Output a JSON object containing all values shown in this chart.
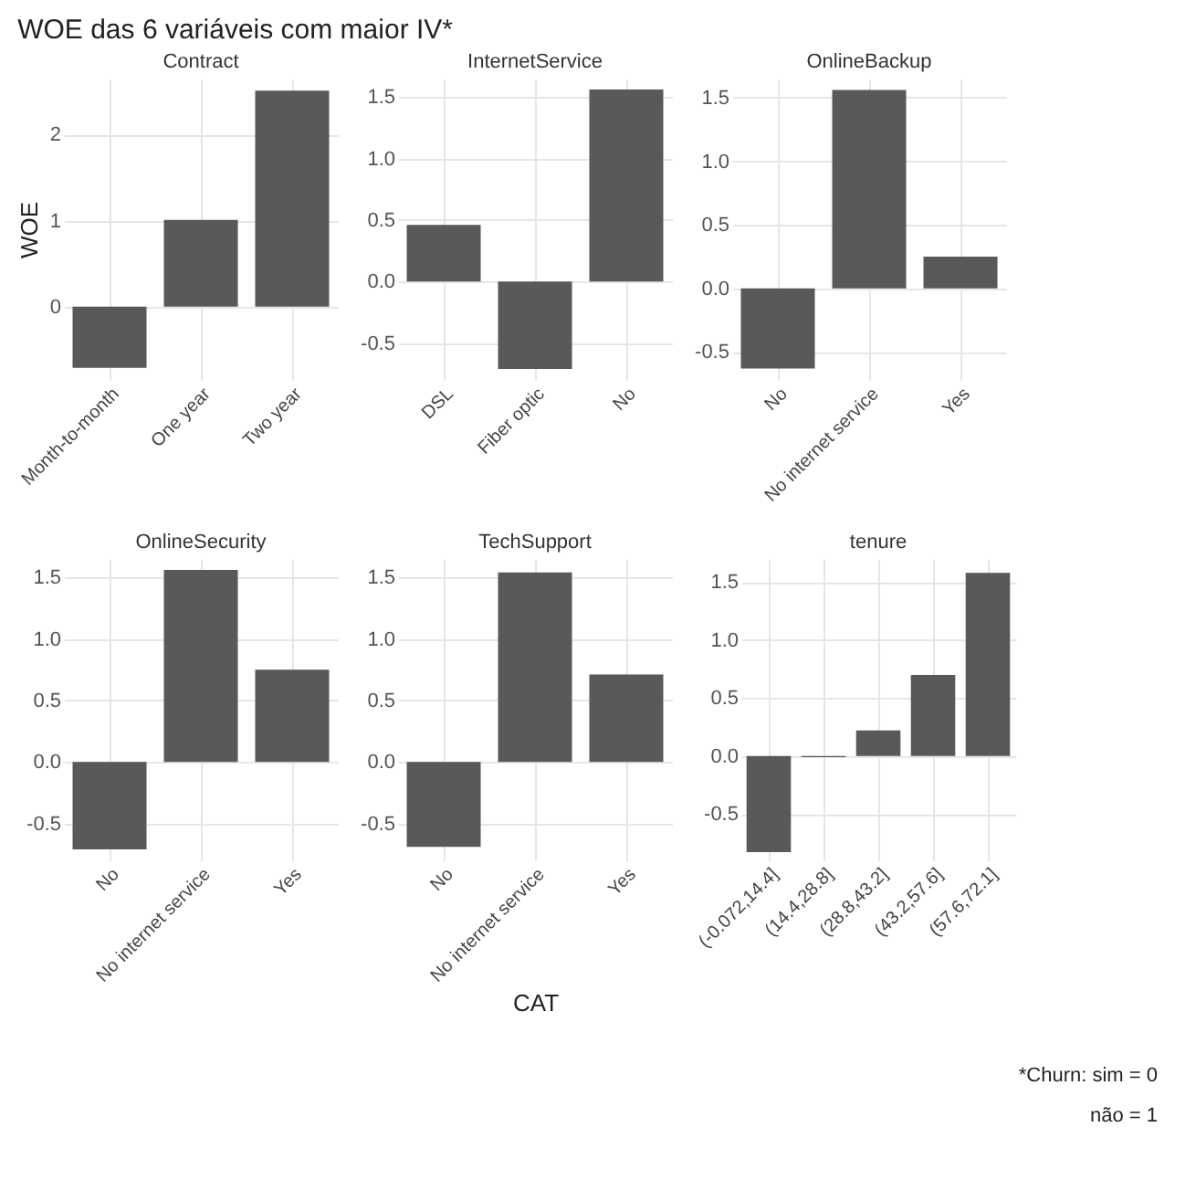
{
  "chart_data": [
    {
      "type": "bar",
      "title": "Contract",
      "ylabel": "WOE",
      "annotations": [
        "WOE das 6 variáveis com maior IV*"
      ],
      "categories": [
        "Month-to-month",
        "One year",
        "Two year"
      ],
      "values": [
        -0.71,
        1.01,
        2.51
      ],
      "color": "#595959",
      "ylim": [
        -0.85,
        2.65
      ],
      "yticks": [
        0,
        1,
        2
      ],
      "grid": true
    },
    {
      "type": "bar",
      "title": "InternetService",
      "categories": [
        "DSL",
        "Fiber optic",
        "No"
      ],
      "values": [
        0.46,
        -0.71,
        1.56
      ],
      "color": "#595959",
      "ylim": [
        -0.8,
        1.65
      ],
      "yticks": [
        {
          "value": -0.5,
          "label": "-0.5"
        },
        {
          "value": 0,
          "label": "0.0"
        },
        {
          "value": 0.5,
          "label": "0.5"
        },
        {
          "value": 1,
          "label": "1.0"
        },
        {
          "value": 1.5,
          "label": "1.5"
        }
      ],
      "grid": true
    },
    {
      "type": "bar",
      "title": "OnlineBackup",
      "categories": [
        "No",
        "No internet service",
        "Yes"
      ],
      "values": [
        -0.63,
        1.56,
        0.25
      ],
      "color": "#595959",
      "ylim": [
        -0.72,
        1.65
      ],
      "yticks": [
        {
          "value": -0.5,
          "label": "-0.5"
        },
        {
          "value": 0,
          "label": "0.0"
        },
        {
          "value": 0.5,
          "label": "0.5"
        },
        {
          "value": 1,
          "label": "1.0"
        },
        {
          "value": 1.5,
          "label": "1.5"
        }
      ],
      "grid": true
    },
    {
      "type": "bar",
      "title": "OnlineSecurity",
      "categories": [
        "No",
        "No internet service",
        "Yes"
      ],
      "values": [
        -0.71,
        1.56,
        0.75
      ],
      "color": "#595959",
      "ylim": [
        -0.8,
        1.65
      ],
      "yticks": [
        {
          "value": -0.5,
          "label": "-0.5"
        },
        {
          "value": 0,
          "label": "0.0"
        },
        {
          "value": 0.5,
          "label": "0.5"
        },
        {
          "value": 1,
          "label": "1.0"
        },
        {
          "value": 1.5,
          "label": "1.5"
        }
      ],
      "grid": true
    },
    {
      "type": "bar",
      "title": "TechSupport",
      "xlabel": "CAT",
      "categories": [
        "No",
        "No internet service",
        "Yes"
      ],
      "values": [
        -0.69,
        1.54,
        0.71
      ],
      "color": "#595959",
      "ylim": [
        -0.8,
        1.65
      ],
      "yticks": [
        {
          "value": -0.5,
          "label": "-0.5"
        },
        {
          "value": 0,
          "label": "0.0"
        },
        {
          "value": 0.5,
          "label": "0.5"
        },
        {
          "value": 1,
          "label": "1.0"
        },
        {
          "value": 1.5,
          "label": "1.5"
        }
      ],
      "grid": true
    },
    {
      "type": "bar",
      "title": "tenure",
      "annotations": [
        "*Churn: sim = 0",
        "não = 1"
      ],
      "categories": [
        "(-0.072,14.4]",
        "(14.4,28.8]",
        "(28.8,43.2]",
        "(43.2,57.6]",
        "(57.6,72.1]"
      ],
      "values": [
        -0.83,
        -0.01,
        0.22,
        0.7,
        1.58
      ],
      "color": "#595959",
      "ylim": [
        -0.9,
        1.7
      ],
      "yticks": [
        {
          "value": -0.5,
          "label": "-0.5"
        },
        {
          "value": 0,
          "label": "0.0"
        },
        {
          "value": 0.5,
          "label": "0.5"
        },
        {
          "value": 1,
          "label": "1.0"
        },
        {
          "value": 1.5,
          "label": "1.5"
        }
      ],
      "grid": true
    }
  ]
}
